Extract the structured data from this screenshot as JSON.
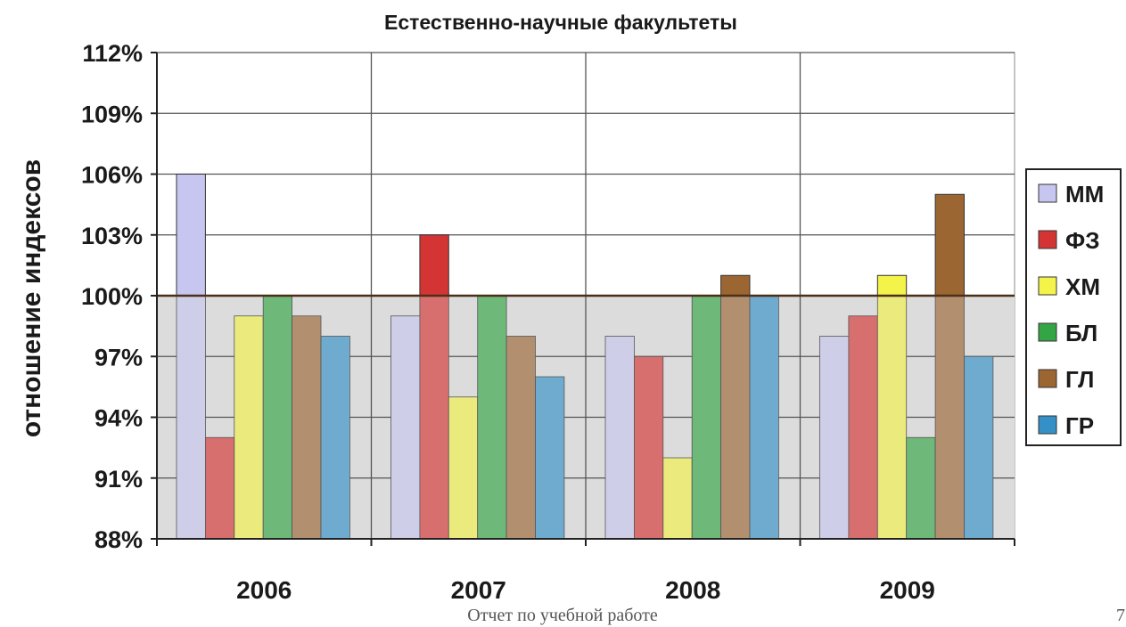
{
  "chart_data": {
    "type": "bar",
    "title": "Естественно-научные факультеты",
    "ylabel": "отношение индексов",
    "xlabel": "",
    "ylim": [
      88,
      112
    ],
    "yticks": [
      88,
      91,
      94,
      97,
      100,
      103,
      106,
      109,
      112
    ],
    "ytick_labels": [
      "88%",
      "91%",
      "94%",
      "97%",
      "100%",
      "103%",
      "106%",
      "109%",
      "112%"
    ],
    "categories": [
      "2006",
      "2007",
      "2008",
      "2009"
    ],
    "reference_line": 100,
    "grid": true,
    "legend_position": "right",
    "series": [
      {
        "name": "ММ",
        "color": "#c6c6f0",
        "values": [
          106,
          99,
          98,
          98
        ]
      },
      {
        "name": "ФЗ",
        "color": "#d43434",
        "values": [
          93,
          103,
          97,
          99
        ]
      },
      {
        "name": "ХМ",
        "color": "#f3f34a",
        "values": [
          99,
          95,
          92,
          101
        ]
      },
      {
        "name": "БЛ",
        "color": "#33a544",
        "values": [
          100,
          100,
          100,
          93
        ]
      },
      {
        "name": "ГЛ",
        "color": "#9c6632",
        "values": [
          99,
          98,
          101,
          105
        ]
      },
      {
        "name": "ГР",
        "color": "#3590c8",
        "values": [
          98,
          96,
          100,
          97
        ]
      }
    ]
  },
  "footer": {
    "text": "Отчет по учебной работе",
    "page_number": "7"
  }
}
